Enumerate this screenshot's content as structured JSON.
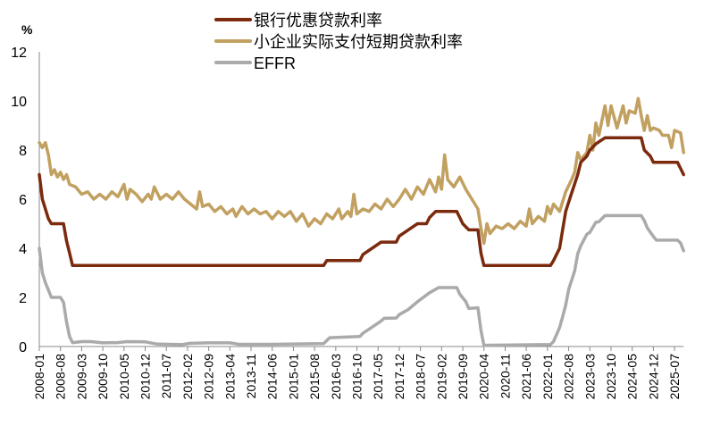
{
  "chart_data": {
    "type": "line",
    "ylabel": "%",
    "ylim": [
      0,
      12
    ],
    "yticks": [
      "0",
      "2",
      "4",
      "6",
      "8",
      "10",
      "12"
    ],
    "x_start": "2008-01",
    "x_end": "2025-10",
    "xtick_labels": [
      "2008-01",
      "2008-08",
      "2009-03",
      "2009-10",
      "2010-05",
      "2010-12",
      "2011-07",
      "2012-02",
      "2012-09",
      "2013-04",
      "2013-11",
      "2014-06",
      "2015-01",
      "2015-08",
      "2016-03",
      "2016-10",
      "2017-05",
      "2017-12",
      "2018-07",
      "2019-02",
      "2019-09",
      "2020-04",
      "2020-11",
      "2021-06",
      "2022-01",
      "2022-08",
      "2023-03",
      "2023-10",
      "2024-05",
      "2024-12",
      "2025-07"
    ],
    "grid": false,
    "legend_placement": "top-center",
    "series": [
      {
        "name": "银行优惠贷款利率",
        "color": "#7B2A0E",
        "points": [
          [
            "2008-01",
            7.0
          ],
          [
            "2008-02",
            6.0
          ],
          [
            "2008-03",
            5.6
          ],
          [
            "2008-04",
            5.2
          ],
          [
            "2008-05",
            5.0
          ],
          [
            "2008-09",
            5.0
          ],
          [
            "2008-10",
            4.3
          ],
          [
            "2008-11",
            3.8
          ],
          [
            "2008-12",
            3.3
          ],
          [
            "2015-11",
            3.3
          ],
          [
            "2015-12",
            3.5
          ],
          [
            "2016-11",
            3.5
          ],
          [
            "2016-12",
            3.75
          ],
          [
            "2017-03",
            4.0
          ],
          [
            "2017-06",
            4.25
          ],
          [
            "2017-11",
            4.25
          ],
          [
            "2017-12",
            4.5
          ],
          [
            "2018-03",
            4.75
          ],
          [
            "2018-06",
            5.0
          ],
          [
            "2018-09",
            5.0
          ],
          [
            "2018-10",
            5.25
          ],
          [
            "2018-12",
            5.5
          ],
          [
            "2019-07",
            5.5
          ],
          [
            "2019-08",
            5.25
          ],
          [
            "2019-09",
            5.0
          ],
          [
            "2019-11",
            4.75
          ],
          [
            "2020-02",
            4.75
          ],
          [
            "2020-03",
            3.8
          ],
          [
            "2020-04",
            3.3
          ],
          [
            "2022-02",
            3.3
          ],
          [
            "2022-03",
            3.5
          ],
          [
            "2022-05",
            4.0
          ],
          [
            "2022-06",
            4.75
          ],
          [
            "2022-07",
            5.5
          ],
          [
            "2022-09",
            6.25
          ],
          [
            "2022-11",
            7.0
          ],
          [
            "2022-12",
            7.5
          ],
          [
            "2023-02",
            7.75
          ],
          [
            "2023-03",
            8.0
          ],
          [
            "2023-05",
            8.25
          ],
          [
            "2023-08",
            8.5
          ],
          [
            "2024-08",
            8.5
          ],
          [
            "2024-09",
            8.0
          ],
          [
            "2024-11",
            7.75
          ],
          [
            "2024-12",
            7.5
          ],
          [
            "2025-08",
            7.5
          ],
          [
            "2025-09",
            7.25
          ],
          [
            "2025-10",
            7.0
          ]
        ]
      },
      {
        "name": "小企业实际支付短期贷款利率",
        "color": "#C1A060",
        "points": [
          [
            "2008-01",
            8.3
          ],
          [
            "2008-02",
            8.1
          ],
          [
            "2008-03",
            8.3
          ],
          [
            "2008-04",
            7.8
          ],
          [
            "2008-05",
            7.0
          ],
          [
            "2008-06",
            7.2
          ],
          [
            "2008-07",
            6.9
          ],
          [
            "2008-08",
            7.1
          ],
          [
            "2008-09",
            6.8
          ],
          [
            "2008-10",
            7.0
          ],
          [
            "2008-11",
            6.6
          ],
          [
            "2009-01",
            6.5
          ],
          [
            "2009-03",
            6.2
          ],
          [
            "2009-05",
            6.3
          ],
          [
            "2009-07",
            6.0
          ],
          [
            "2009-09",
            6.2
          ],
          [
            "2009-11",
            6.0
          ],
          [
            "2010-01",
            6.3
          ],
          [
            "2010-03",
            6.1
          ],
          [
            "2010-05",
            6.6
          ],
          [
            "2010-06",
            6.0
          ],
          [
            "2010-07",
            6.4
          ],
          [
            "2010-09",
            6.2
          ],
          [
            "2010-11",
            5.9
          ],
          [
            "2011-01",
            6.2
          ],
          [
            "2011-02",
            6.0
          ],
          [
            "2011-03",
            6.5
          ],
          [
            "2011-05",
            6.0
          ],
          [
            "2011-07",
            6.2
          ],
          [
            "2011-09",
            6.0
          ],
          [
            "2011-11",
            6.3
          ],
          [
            "2012-01",
            6.0
          ],
          [
            "2012-03",
            5.8
          ],
          [
            "2012-05",
            5.6
          ],
          [
            "2012-06",
            6.3
          ],
          [
            "2012-07",
            5.7
          ],
          [
            "2012-09",
            5.8
          ],
          [
            "2012-11",
            5.5
          ],
          [
            "2013-01",
            5.7
          ],
          [
            "2013-03",
            5.4
          ],
          [
            "2013-05",
            5.6
          ],
          [
            "2013-06",
            5.3
          ],
          [
            "2013-08",
            5.7
          ],
          [
            "2013-10",
            5.4
          ],
          [
            "2013-12",
            5.6
          ],
          [
            "2014-02",
            5.4
          ],
          [
            "2014-04",
            5.5
          ],
          [
            "2014-06",
            5.2
          ],
          [
            "2014-08",
            5.5
          ],
          [
            "2014-10",
            5.3
          ],
          [
            "2014-12",
            5.5
          ],
          [
            "2015-02",
            5.1
          ],
          [
            "2015-04",
            5.4
          ],
          [
            "2015-06",
            4.9
          ],
          [
            "2015-08",
            5.2
          ],
          [
            "2015-10",
            5.0
          ],
          [
            "2015-12",
            5.4
          ],
          [
            "2016-02",
            5.2
          ],
          [
            "2016-04",
            5.6
          ],
          [
            "2016-05",
            5.2
          ],
          [
            "2016-07",
            5.5
          ],
          [
            "2016-08",
            5.3
          ],
          [
            "2016-09",
            6.2
          ],
          [
            "2016-10",
            5.4
          ],
          [
            "2016-12",
            5.6
          ],
          [
            "2017-02",
            5.5
          ],
          [
            "2017-04",
            5.8
          ],
          [
            "2017-06",
            5.6
          ],
          [
            "2017-08",
            6.0
          ],
          [
            "2017-10",
            5.7
          ],
          [
            "2017-12",
            6.0
          ],
          [
            "2018-02",
            6.4
          ],
          [
            "2018-04",
            6.0
          ],
          [
            "2018-06",
            6.5
          ],
          [
            "2018-08",
            6.2
          ],
          [
            "2018-10",
            6.8
          ],
          [
            "2018-12",
            6.3
          ],
          [
            "2019-01",
            6.9
          ],
          [
            "2019-02",
            6.4
          ],
          [
            "2019-03",
            7.8
          ],
          [
            "2019-04",
            6.8
          ],
          [
            "2019-06",
            6.5
          ],
          [
            "2019-08",
            6.9
          ],
          [
            "2019-10",
            6.4
          ],
          [
            "2019-12",
            6.0
          ],
          [
            "2020-02",
            5.6
          ],
          [
            "2020-03",
            4.8
          ],
          [
            "2020-04",
            4.2
          ],
          [
            "2020-05",
            5.0
          ],
          [
            "2020-06",
            4.6
          ],
          [
            "2020-08",
            4.9
          ],
          [
            "2020-10",
            4.8
          ],
          [
            "2020-12",
            5.0
          ],
          [
            "2021-02",
            4.8
          ],
          [
            "2021-04",
            5.1
          ],
          [
            "2021-06",
            4.9
          ],
          [
            "2021-07",
            5.6
          ],
          [
            "2021-08",
            5.0
          ],
          [
            "2021-10",
            5.3
          ],
          [
            "2021-12",
            5.1
          ],
          [
            "2022-01",
            5.7
          ],
          [
            "2022-02",
            5.4
          ],
          [
            "2022-03",
            5.8
          ],
          [
            "2022-05",
            5.5
          ],
          [
            "2022-07",
            6.3
          ],
          [
            "2022-09",
            6.8
          ],
          [
            "2022-10",
            7.1
          ],
          [
            "2022-11",
            7.9
          ],
          [
            "2022-12",
            7.6
          ],
          [
            "2023-02",
            7.9
          ],
          [
            "2023-03",
            8.6
          ],
          [
            "2023-04",
            8.0
          ],
          [
            "2023-05",
            9.1
          ],
          [
            "2023-06",
            8.6
          ],
          [
            "2023-08",
            9.8
          ],
          [
            "2023-09",
            9.0
          ],
          [
            "2023-10",
            9.8
          ],
          [
            "2023-12",
            8.9
          ],
          [
            "2024-02",
            9.8
          ],
          [
            "2024-03",
            9.1
          ],
          [
            "2024-04",
            9.6
          ],
          [
            "2024-06",
            9.5
          ],
          [
            "2024-07",
            10.1
          ],
          [
            "2024-08",
            9.4
          ],
          [
            "2024-09",
            8.8
          ],
          [
            "2024-10",
            9.4
          ],
          [
            "2024-11",
            8.8
          ],
          [
            "2024-12",
            8.9
          ],
          [
            "2025-02",
            8.8
          ],
          [
            "2025-03",
            8.6
          ],
          [
            "2025-05",
            8.6
          ],
          [
            "2025-06",
            8.1
          ],
          [
            "2025-07",
            8.8
          ],
          [
            "2025-09",
            8.7
          ],
          [
            "2025-10",
            7.9
          ]
        ]
      },
      {
        "name": "EFFR",
        "color": "#AAAAAA",
        "points": [
          [
            "2008-01",
            4.0
          ],
          [
            "2008-02",
            3.0
          ],
          [
            "2008-03",
            2.6
          ],
          [
            "2008-04",
            2.3
          ],
          [
            "2008-05",
            2.0
          ],
          [
            "2008-08",
            2.0
          ],
          [
            "2008-09",
            1.8
          ],
          [
            "2008-10",
            1.0
          ],
          [
            "2008-11",
            0.4
          ],
          [
            "2008-12",
            0.16
          ],
          [
            "2009-03",
            0.2
          ],
          [
            "2009-06",
            0.2
          ],
          [
            "2009-10",
            0.15
          ],
          [
            "2010-03",
            0.16
          ],
          [
            "2010-06",
            0.2
          ],
          [
            "2010-12",
            0.19
          ],
          [
            "2011-04",
            0.1
          ],
          [
            "2011-12",
            0.08
          ],
          [
            "2012-03",
            0.13
          ],
          [
            "2012-09",
            0.15
          ],
          [
            "2013-04",
            0.15
          ],
          [
            "2013-07",
            0.09
          ],
          [
            "2014-06",
            0.09
          ],
          [
            "2015-11",
            0.12
          ],
          [
            "2015-12",
            0.24
          ],
          [
            "2016-01",
            0.36
          ],
          [
            "2016-11",
            0.41
          ],
          [
            "2016-12",
            0.54
          ],
          [
            "2017-03",
            0.79
          ],
          [
            "2017-06",
            1.04
          ],
          [
            "2017-07",
            1.15
          ],
          [
            "2017-11",
            1.16
          ],
          [
            "2017-12",
            1.3
          ],
          [
            "2018-03",
            1.51
          ],
          [
            "2018-06",
            1.82
          ],
          [
            "2018-10",
            2.19
          ],
          [
            "2019-01",
            2.4
          ],
          [
            "2019-07",
            2.4
          ],
          [
            "2019-08",
            2.13
          ],
          [
            "2019-10",
            1.83
          ],
          [
            "2019-11",
            1.55
          ],
          [
            "2020-02",
            1.58
          ],
          [
            "2020-03",
            0.65
          ],
          [
            "2020-04",
            0.05
          ],
          [
            "2022-02",
            0.08
          ],
          [
            "2022-03",
            0.2
          ],
          [
            "2022-05",
            0.77
          ],
          [
            "2022-06",
            1.21
          ],
          [
            "2022-07",
            1.68
          ],
          [
            "2022-08",
            2.33
          ],
          [
            "2022-10",
            3.08
          ],
          [
            "2022-11",
            3.78
          ],
          [
            "2022-12",
            4.1
          ],
          [
            "2023-02",
            4.57
          ],
          [
            "2023-03",
            4.65
          ],
          [
            "2023-05",
            5.06
          ],
          [
            "2023-06",
            5.08
          ],
          [
            "2023-08",
            5.33
          ],
          [
            "2024-08",
            5.33
          ],
          [
            "2024-09",
            5.13
          ],
          [
            "2024-10",
            4.83
          ],
          [
            "2024-12",
            4.48
          ],
          [
            "2025-01",
            4.33
          ],
          [
            "2025-08",
            4.33
          ],
          [
            "2025-09",
            4.22
          ],
          [
            "2025-10",
            3.9
          ]
        ]
      }
    ]
  }
}
